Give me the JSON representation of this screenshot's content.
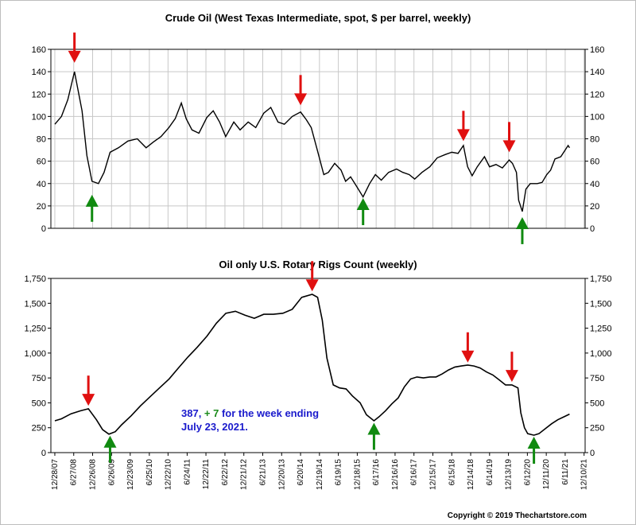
{
  "copyright": "Copyright © 2019 Thechartstore.com",
  "annotation": {
    "value_text": "387, ",
    "change_text": "+ 7",
    "rest_text": " for the week ending",
    "line2": "July 23, 2021.",
    "colors": {
      "value": "#1a1acc",
      "change": "#1a8a1a"
    }
  },
  "colors": {
    "grid": "#c8c8c8",
    "line": "#000000",
    "arrow_down": "#e01010",
    "arrow_up": "#108a10"
  },
  "chart_data": [
    {
      "type": "line",
      "title": "Crude Oil (West Texas Intermediate, spot, $ per barrel, weekly)",
      "xlabel": "",
      "ylabel": "",
      "ylim": [
        0,
        160
      ],
      "yticks": [
        "0",
        "20",
        "40",
        "60",
        "80",
        "100",
        "120",
        "140",
        "160"
      ],
      "grid": true,
      "x_ticks": [
        "12/28/07",
        "6/27/08",
        "12/26/08",
        "6/26/09",
        "12/23/09",
        "6/25/10",
        "12/22/10",
        "6/24/11",
        "12/22/11",
        "6/22/12",
        "12/21/12",
        "6/21/13",
        "12/20/13",
        "6/20/14",
        "12/19/14",
        "6/19/15",
        "12/18/15",
        "6/17/16",
        "12/16/16",
        "6/16/17",
        "12/15/17",
        "6/15/18",
        "12/14/18",
        "6/14/19",
        "12/13/19",
        "6/12/20",
        "12/11/20",
        "6/11/21",
        "12/10/21"
      ],
      "series": [
        {
          "x": [
            "2007-12-28",
            "2008-03-01",
            "2008-05-01",
            "2008-07-04",
            "2008-09-15",
            "2008-11-01",
            "2008-12-20",
            "2009-02-20",
            "2009-04-15",
            "2009-06-12",
            "2009-09-01",
            "2009-12-01",
            "2010-03-01",
            "2010-05-25",
            "2010-08-01",
            "2010-10-15",
            "2010-12-30",
            "2011-03-01",
            "2011-04-29",
            "2011-06-15",
            "2011-08-10",
            "2011-10-15",
            "2011-12-30",
            "2012-03-01",
            "2012-05-01",
            "2012-06-29",
            "2012-09-15",
            "2012-11-15",
            "2013-02-01",
            "2013-04-15",
            "2013-07-01",
            "2013-09-06",
            "2013-11-15",
            "2014-01-15",
            "2014-04-01",
            "2014-06-20",
            "2014-08-15",
            "2014-10-01",
            "2014-11-28",
            "2015-01-30",
            "2015-03-15",
            "2015-05-15",
            "2015-07-15",
            "2015-08-28",
            "2015-10-15",
            "2015-12-15",
            "2016-02-12",
            "2016-04-15",
            "2016-06-10",
            "2016-08-05",
            "2016-10-15",
            "2016-12-30",
            "2017-03-01",
            "2017-05-01",
            "2017-06-23",
            "2017-09-01",
            "2017-11-15",
            "2018-01-26",
            "2018-04-15",
            "2018-06-15",
            "2018-08-15",
            "2018-10-05",
            "2018-11-15",
            "2018-12-28",
            "2019-02-15",
            "2019-04-26",
            "2019-06-14",
            "2019-08-15",
            "2019-10-15",
            "2019-12-20",
            "2020-01-20",
            "2020-02-28",
            "2020-03-20",
            "2020-04-24",
            "2020-05-29",
            "2020-07-10",
            "2020-09-15",
            "2020-11-01",
            "2020-12-15",
            "2021-01-22",
            "2021-03-05",
            "2021-04-30",
            "2021-06-11",
            "2021-07-09",
            "2021-07-23"
          ],
          "y": [
            93,
            100,
            115,
            140,
            105,
            65,
            42,
            40,
            50,
            68,
            72,
            78,
            80,
            72,
            77,
            82,
            90,
            98,
            112,
            98,
            88,
            85,
            99,
            105,
            95,
            82,
            95,
            88,
            95,
            90,
            103,
            108,
            95,
            93,
            100,
            104,
            97,
            90,
            70,
            48,
            50,
            58,
            52,
            42,
            46,
            37,
            28,
            40,
            48,
            43,
            50,
            53,
            50,
            48,
            44,
            50,
            55,
            63,
            66,
            68,
            67,
            74,
            55,
            47,
            55,
            64,
            55,
            57,
            54,
            61,
            58,
            50,
            25,
            15,
            35,
            40,
            40,
            41,
            48,
            52,
            62,
            64,
            70,
            74,
            72
          ]
        }
      ],
      "arrows": [
        {
          "dir": "down",
          "x": "2008-07-04",
          "y": 148
        },
        {
          "dir": "up",
          "x": "2008-12-20",
          "y": 30
        },
        {
          "dir": "down",
          "x": "2014-06-20",
          "y": 110
        },
        {
          "dir": "up",
          "x": "2016-02-12",
          "y": 27
        },
        {
          "dir": "down",
          "x": "2018-10-05",
          "y": 78
        },
        {
          "dir": "down",
          "x": "2019-12-20",
          "y": 68
        },
        {
          "dir": "up",
          "x": "2020-04-24",
          "y": 10
        }
      ]
    },
    {
      "type": "line",
      "title": "Oil only U.S. Rotary Rigs Count (weekly)",
      "xlabel": "",
      "ylabel": "",
      "ylim": [
        0,
        1750
      ],
      "yticks": [
        "0",
        "250",
        "500",
        "750",
        "1,000",
        "1,250",
        "1,500",
        "1,750"
      ],
      "grid": false,
      "x_ticks": [
        "12/28/07",
        "6/27/08",
        "12/26/08",
        "6/26/09",
        "12/23/09",
        "6/25/10",
        "12/22/10",
        "6/24/11",
        "12/22/11",
        "6/22/12",
        "12/21/12",
        "6/21/13",
        "12/20/13",
        "6/20/14",
        "12/19/14",
        "6/19/15",
        "12/18/15",
        "6/17/16",
        "12/16/16",
        "6/16/17",
        "12/15/17",
        "6/15/18",
        "12/14/18",
        "6/14/19",
        "12/13/19",
        "6/12/20",
        "12/11/20",
        "6/11/21",
        "12/10/21"
      ],
      "series": [
        {
          "x": [
            "2007-12-28",
            "2008-03-01",
            "2008-06-01",
            "2008-09-01",
            "2008-11-15",
            "2009-02-01",
            "2009-04-01",
            "2009-06-01",
            "2009-08-01",
            "2009-10-01",
            "2010-01-01",
            "2010-04-01",
            "2010-07-01",
            "2010-10-01",
            "2011-01-01",
            "2011-04-01",
            "2011-07-01",
            "2011-10-01",
            "2012-01-01",
            "2012-04-01",
            "2012-07-01",
            "2012-10-01",
            "2013-01-01",
            "2013-04-01",
            "2013-07-01",
            "2013-10-01",
            "2014-01-01",
            "2014-04-01",
            "2014-07-01",
            "2014-10-10",
            "2014-12-01",
            "2015-01-15",
            "2015-03-01",
            "2015-05-01",
            "2015-07-01",
            "2015-09-01",
            "2015-11-01",
            "2016-01-15",
            "2016-03-15",
            "2016-05-27",
            "2016-07-15",
            "2016-09-15",
            "2016-11-15",
            "2017-01-15",
            "2017-03-15",
            "2017-05-15",
            "2017-07-15",
            "2017-09-15",
            "2017-11-15",
            "2018-01-15",
            "2018-03-15",
            "2018-05-15",
            "2018-07-15",
            "2018-09-15",
            "2018-11-16",
            "2019-01-15",
            "2019-03-15",
            "2019-05-15",
            "2019-07-15",
            "2019-09-15",
            "2019-11-15",
            "2020-01-15",
            "2020-03-13",
            "2020-04-10",
            "2020-05-15",
            "2020-06-15",
            "2020-08-14",
            "2020-10-01",
            "2020-12-01",
            "2021-02-01",
            "2021-04-01",
            "2021-06-01",
            "2021-07-23"
          ],
          "y": [
            320,
            340,
            390,
            420,
            440,
            330,
            230,
            185,
            210,
            280,
            370,
            470,
            560,
            650,
            740,
            850,
            960,
            1060,
            1170,
            1300,
            1400,
            1420,
            1380,
            1350,
            1390,
            1390,
            1400,
            1440,
            1560,
            1590,
            1560,
            1330,
            950,
            680,
            650,
            640,
            570,
            500,
            380,
            320,
            360,
            420,
            490,
            550,
            660,
            740,
            760,
            750,
            760,
            760,
            790,
            830,
            860,
            870,
            880,
            870,
            850,
            810,
            780,
            730,
            680,
            680,
            650,
            400,
            250,
            190,
            175,
            190,
            240,
            290,
            330,
            360,
            387
          ]
        }
      ],
      "arrows": [
        {
          "dir": "down",
          "x": "2008-11-15",
          "y": 470
        },
        {
          "dir": "up",
          "x": "2009-06-12",
          "y": 170
        },
        {
          "dir": "down",
          "x": "2014-10-10",
          "y": 1620
        },
        {
          "dir": "up",
          "x": "2016-05-27",
          "y": 300
        },
        {
          "dir": "down",
          "x": "2018-11-16",
          "y": 905
        },
        {
          "dir": "down",
          "x": "2020-01-15",
          "y": 710
        },
        {
          "dir": "up",
          "x": "2020-08-14",
          "y": 160
        }
      ]
    }
  ]
}
